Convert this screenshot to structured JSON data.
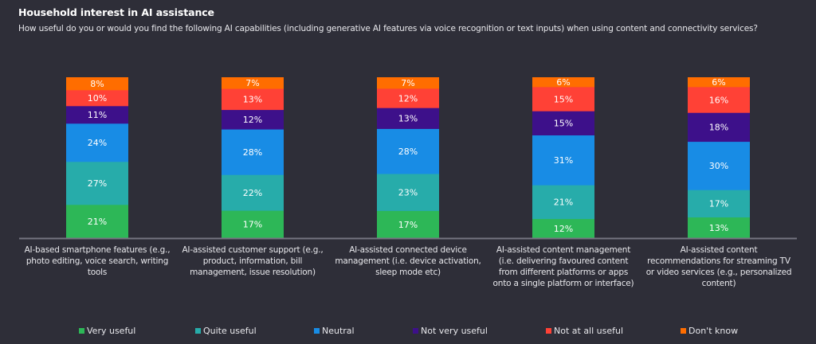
{
  "header": {
    "title": "Household interest in AI assistance",
    "subtitle": "How useful do you or would you find the following AI capabilities (including generative AI features via voice recognition or text inputs) when using content and connectivity services?"
  },
  "colors": {
    "background": "#2e2e38",
    "axis": "#747480",
    "very_useful": "#2db757",
    "quite_useful": "#27acaa",
    "neutral": "#188ce5",
    "not_very_useful": "#3d108a",
    "not_at_all_useful": "#ff4136",
    "dont_know": "#ff6d00"
  },
  "chart_data": {
    "type": "bar",
    "stacked": true,
    "orientation": "vertical",
    "title": "Household interest in AI assistance",
    "subtitle": "How useful do you or would you find the following AI capabilities (including generative AI features via voice recognition or text inputs) when using content and connectivity services?",
    "xlabel": "",
    "ylabel": "",
    "ylim": [
      0,
      100
    ],
    "unit": "%",
    "grid": false,
    "legend_position": "bottom",
    "categories": [
      "AI-based smartphone features (e.g., photo editing, voice search, writing tools",
      "AI-assisted customer support (e.g., product, information, bill management, issue resolution)",
      "AI-assisted connected device management (i.e. device activation, sleep mode etc)",
      "AI-assisted content management (i.e. delivering favoured content from different platforms or apps onto a single platform or interface)",
      "AI-assisted content recommendations for streaming TV or video services (e.g., personalized content)"
    ],
    "category_lines": [
      [
        "AI-based smartphone features (e.g.,",
        "photo editing, voice search, writing",
        "tools"
      ],
      [
        "AI-assisted customer support (e.g.,",
        "product, information, bill",
        "management, issue resolution)"
      ],
      [
        "AI-assisted connected device",
        "management (i.e. device activation,",
        "sleep mode etc)"
      ],
      [
        "AI-assisted content management",
        "(i.e. delivering favoured content",
        "from different platforms or apps",
        "onto a single platform or interface)"
      ],
      [
        "AI-assisted content",
        "recommendations for streaming TV",
        "or video services (e.g., personalized",
        "content)"
      ]
    ],
    "series": [
      {
        "name": "Very useful",
        "key": "very_useful",
        "color": "#2db757",
        "values": [
          21,
          17,
          17,
          12,
          13
        ]
      },
      {
        "name": "Quite useful",
        "key": "quite_useful",
        "color": "#27acaa",
        "values": [
          27,
          22,
          23,
          21,
          17
        ]
      },
      {
        "name": "Neutral",
        "key": "neutral",
        "color": "#188ce5",
        "values": [
          24,
          28,
          28,
          31,
          30
        ]
      },
      {
        "name": "Not very useful",
        "key": "not_very_useful",
        "color": "#3d108a",
        "values": [
          11,
          12,
          13,
          15,
          18
        ]
      },
      {
        "name": "Not at all useful",
        "key": "not_at_all_useful",
        "color": "#ff4136",
        "values": [
          10,
          13,
          12,
          15,
          16
        ]
      },
      {
        "name": "Don't know",
        "key": "dont_know",
        "color": "#ff6d00",
        "values": [
          8,
          7,
          7,
          6,
          6
        ]
      }
    ]
  },
  "legend": [
    {
      "label": "Very useful",
      "color": "#2db757"
    },
    {
      "label": "Quite useful",
      "color": "#27acaa"
    },
    {
      "label": "Neutral",
      "color": "#188ce5"
    },
    {
      "label": "Not very useful",
      "color": "#3d108a"
    },
    {
      "label": "Not at all useful",
      "color": "#ff4136"
    },
    {
      "label": "Don't know",
      "color": "#ff6d00"
    }
  ]
}
